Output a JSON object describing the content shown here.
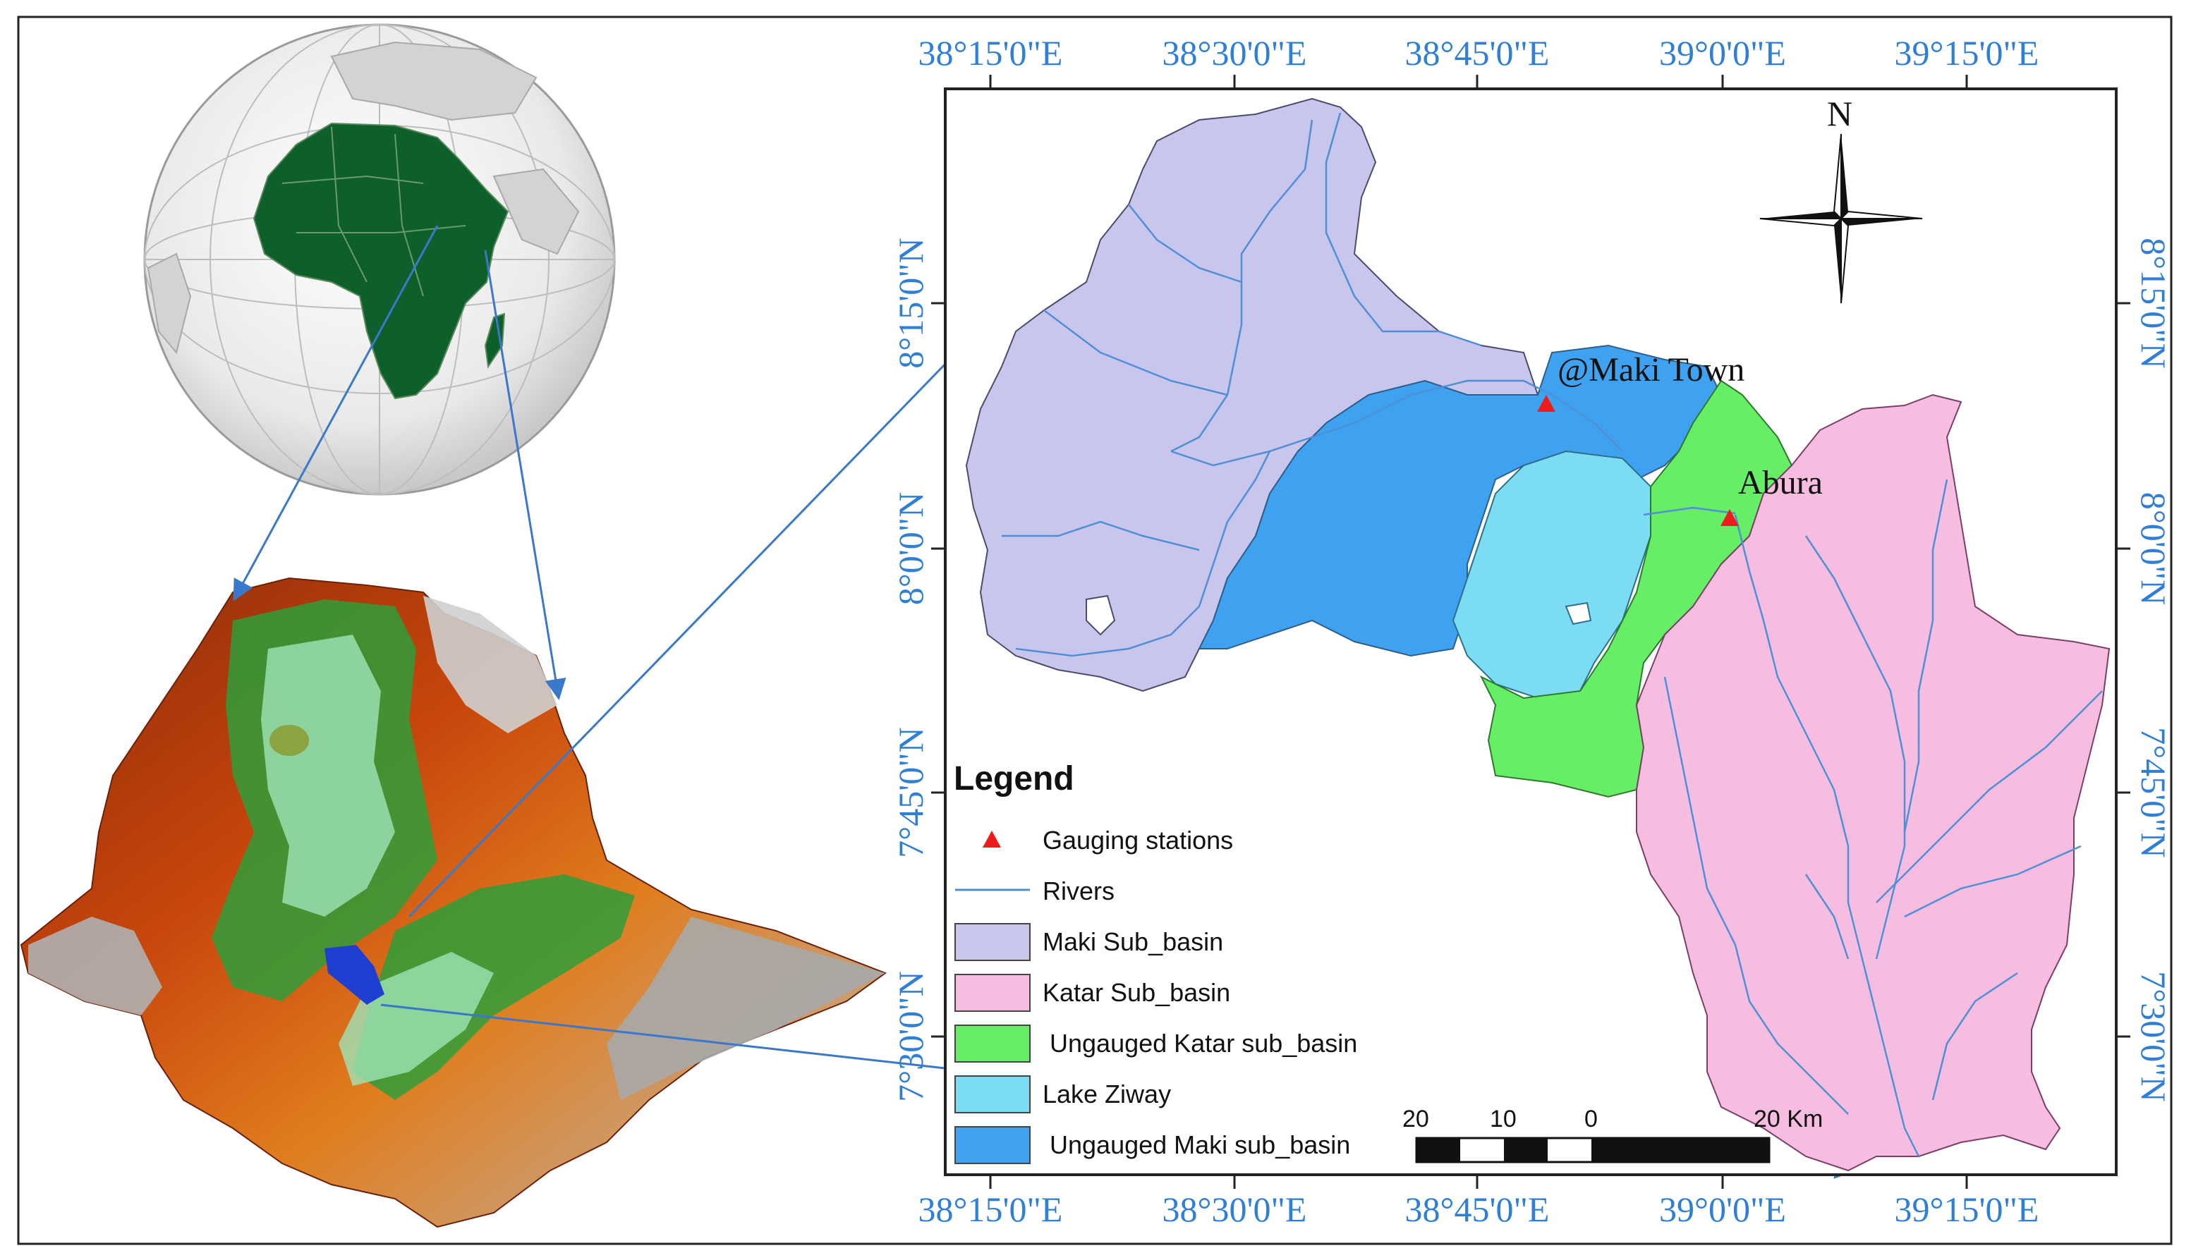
{
  "map": {
    "top_longitudes": [
      "38°15'0\"E",
      "38°30'0\"E",
      "38°45'0\"E",
      "39°0'0\"E",
      "39°15'0\"E"
    ],
    "bottom_longitudes": [
      "38°15'0\"E",
      "38°30'0\"E",
      "38°45'0\"E",
      "39°0'0\"E",
      "39°15'0\"E"
    ],
    "left_latitudes": [
      "8°15'0\"N",
      "8°0'0\"N",
      "7°45'0\"N",
      "7°30'0\"N"
    ],
    "right_latitudes": [
      "8°15'0\"N",
      "8°0'0\"N",
      "7°45'0\"N",
      "7°30'0\"N"
    ],
    "north_label": "N",
    "stations": [
      {
        "label": "@Maki Town"
      },
      {
        "label": "Abura"
      }
    ],
    "scale": {
      "labels": [
        "20",
        "10",
        "0",
        "20"
      ],
      "unit": "Km"
    }
  },
  "legend": {
    "title": "Legend",
    "items": [
      {
        "label": "Gauging stations",
        "symbol": "triangle",
        "color": "#ee1c1c"
      },
      {
        "label": "Rivers",
        "symbol": "line",
        "color": "#4f8fd6"
      },
      {
        "label": "Maki Sub_basin",
        "symbol": "box",
        "color": "#c9c6ee"
      },
      {
        "label": "Katar Sub_basin",
        "symbol": "box",
        "color": "#f6bde0"
      },
      {
        "label": "Ungauged Katar sub_basin",
        "symbol": "box",
        "color": "#66ee66"
      },
      {
        "label": "Lake Ziway",
        "symbol": "box",
        "color": "#7cdcf2"
      },
      {
        "label": "Ungauged Maki sub_basin",
        "symbol": "box",
        "color": "#3fa2f0"
      }
    ]
  },
  "colors": {
    "africa": "#0d5f2b",
    "coord_text": "#2f7fd6",
    "arrows": "#3a78c9"
  }
}
